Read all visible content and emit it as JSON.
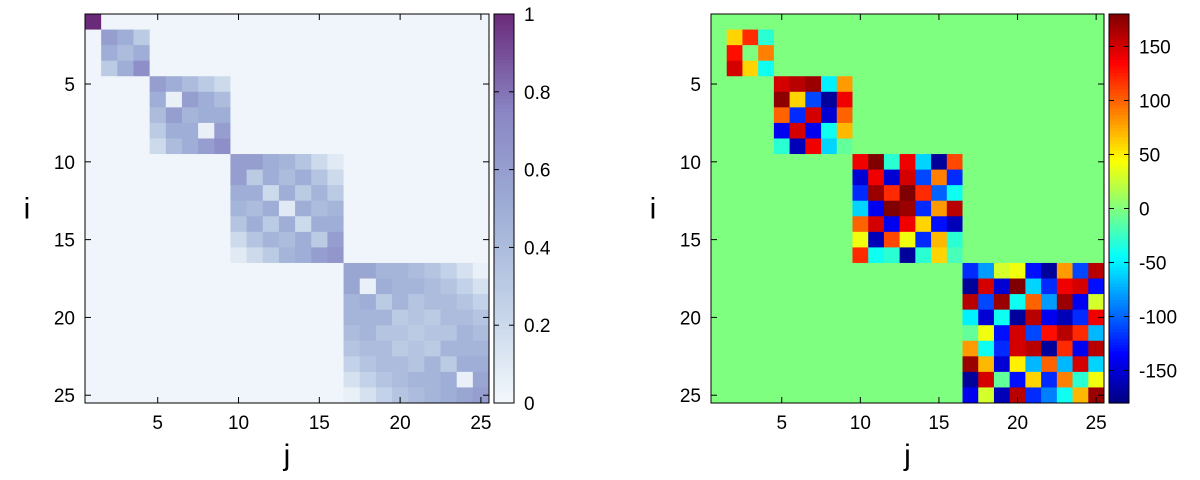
{
  "chart_data": [
    {
      "type": "heatmap",
      "title": "",
      "xlabel": "j",
      "ylabel": "i",
      "x_range": [
        1,
        25
      ],
      "y_range": [
        1,
        25
      ],
      "y_inverted": true,
      "x_ticks": [
        5,
        10,
        15,
        20,
        25
      ],
      "y_ticks": [
        5,
        10,
        15,
        20,
        25
      ],
      "colorbar": {
        "min": 0,
        "max": 1,
        "ticks": [
          "0",
          "0.2",
          "0.4",
          "0.6",
          "0.8",
          "1"
        ],
        "tick_values": [
          0,
          0.2,
          0.4,
          0.6,
          0.8,
          1
        ],
        "colormap": [
          "#f3f8fc",
          "#c3d2e8",
          "#9eaed6",
          "#8a86c4",
          "#6a2a7a"
        ]
      },
      "blocks": [
        {
          "rows": [
            1,
            1
          ],
          "values": [
            [
              1.0
            ]
          ]
        },
        {
          "rows": [
            2,
            4
          ],
          "values": [
            [
              0.6,
              0.5,
              0.3
            ],
            [
              0.5,
              0.4,
              0.5
            ],
            [
              0.3,
              0.5,
              0.7
            ]
          ]
        },
        {
          "rows": [
            5,
            9
          ],
          "values": [
            [
              0.6,
              0.5,
              0.4,
              0.3,
              0.2
            ],
            [
              0.5,
              0.05,
              0.6,
              0.5,
              0.4
            ],
            [
              0.4,
              0.6,
              0.45,
              0.5,
              0.5
            ],
            [
              0.3,
              0.5,
              0.5,
              0.05,
              0.6
            ],
            [
              0.2,
              0.4,
              0.5,
              0.6,
              0.7
            ]
          ]
        },
        {
          "rows": [
            10,
            16
          ],
          "values": [
            [
              0.6,
              0.6,
              0.5,
              0.45,
              0.35,
              0.2,
              0.1
            ],
            [
              0.6,
              0.3,
              0.5,
              0.4,
              0.5,
              0.35,
              0.2
            ],
            [
              0.5,
              0.5,
              0.2,
              0.5,
              0.3,
              0.45,
              0.3
            ],
            [
              0.45,
              0.4,
              0.5,
              0.1,
              0.5,
              0.4,
              0.45
            ],
            [
              0.35,
              0.5,
              0.3,
              0.5,
              0.2,
              0.5,
              0.5
            ],
            [
              0.2,
              0.35,
              0.45,
              0.4,
              0.5,
              0.3,
              0.6
            ],
            [
              0.1,
              0.2,
              0.3,
              0.45,
              0.5,
              0.6,
              0.65
            ]
          ]
        },
        {
          "rows": [
            17,
            25
          ],
          "values": [
            [
              0.55,
              0.55,
              0.45,
              0.45,
              0.4,
              0.35,
              0.25,
              0.15,
              0.05
            ],
            [
              0.55,
              0.05,
              0.5,
              0.45,
              0.45,
              0.4,
              0.35,
              0.25,
              0.15
            ],
            [
              0.45,
              0.5,
              0.3,
              0.45,
              0.35,
              0.4,
              0.4,
              0.35,
              0.25
            ],
            [
              0.45,
              0.45,
              0.45,
              0.3,
              0.35,
              0.3,
              0.4,
              0.4,
              0.35
            ],
            [
              0.4,
              0.45,
              0.35,
              0.35,
              0.3,
              0.35,
              0.35,
              0.45,
              0.4
            ],
            [
              0.35,
              0.4,
              0.4,
              0.3,
              0.35,
              0.3,
              0.45,
              0.45,
              0.45
            ],
            [
              0.25,
              0.35,
              0.4,
              0.4,
              0.35,
              0.45,
              0.3,
              0.5,
              0.5
            ],
            [
              0.15,
              0.25,
              0.35,
              0.4,
              0.45,
              0.45,
              0.5,
              0.05,
              0.55
            ],
            [
              0.05,
              0.15,
              0.25,
              0.35,
              0.4,
              0.45,
              0.5,
              0.55,
              0.6
            ]
          ]
        }
      ],
      "background_value": 0.02
    },
    {
      "type": "heatmap",
      "title": "",
      "xlabel": "j",
      "ylabel": "i",
      "x_range": [
        1,
        25
      ],
      "y_range": [
        1,
        25
      ],
      "y_inverted": true,
      "x_ticks": [
        5,
        10,
        15,
        20,
        25
      ],
      "y_ticks": [
        5,
        10,
        15,
        20,
        25
      ],
      "colorbar": {
        "min": -180,
        "max": 180,
        "ticks": [
          "-150",
          "-100",
          "-50",
          "0",
          "50",
          "100",
          "150"
        ],
        "tick_values": [
          -150,
          -100,
          -50,
          0,
          50,
          100,
          150
        ],
        "colormap": [
          "#00007f",
          "#0000ff",
          "#007fff",
          "#00ffff",
          "#7fff7f",
          "#ffff00",
          "#ff7f00",
          "#ff0000",
          "#7f0000"
        ]
      },
      "blocks": [
        {
          "rows": [
            2,
            4
          ],
          "cols": [
            2,
            4
          ],
          "values": [
            [
              60,
              120,
              -30
            ],
            [
              130,
              0,
              90
            ],
            [
              150,
              60,
              -40
            ]
          ]
        },
        {
          "rows": [
            5,
            9
          ],
          "cols": [
            5,
            9
          ],
          "values": [
            [
              150,
              160,
              170,
              -50,
              80
            ],
            [
              175,
              60,
              -110,
              -170,
              140
            ],
            [
              100,
              -120,
              150,
              -150,
              100
            ],
            [
              -140,
              150,
              -140,
              -40,
              70
            ],
            [
              -30,
              -160,
              140,
              -60,
              -10
            ]
          ]
        },
        {
          "rows": [
            10,
            16
          ],
          "cols": [
            10,
            16
          ],
          "values": [
            [
              140,
              180,
              -30,
              140,
              -60,
              -170,
              110
            ],
            [
              -150,
              140,
              -150,
              150,
              -110,
              90,
              -120
            ],
            [
              -120,
              170,
              120,
              180,
              120,
              -100,
              -40
            ],
            [
              -60,
              -140,
              180,
              170,
              -120,
              80,
              160
            ],
            [
              100,
              150,
              -140,
              140,
              60,
              -130,
              -160
            ],
            [
              40,
              -160,
              110,
              40,
              -120,
              70,
              -30
            ],
            [
              120,
              -40,
              -30,
              -170,
              -30,
              60,
              -20
            ]
          ]
        },
        {
          "rows": [
            17,
            25
          ],
          "cols": [
            17,
            25
          ],
          "values": [
            [
              -120,
              -80,
              30,
              40,
              -130,
              -170,
              80,
              -110,
              160
            ],
            [
              -170,
              150,
              -150,
              180,
              -60,
              -120,
              140,
              150,
              -130
            ],
            [
              160,
              -110,
              170,
              -40,
              100,
              -80,
              170,
              -140,
              30
            ],
            [
              -50,
              -150,
              -40,
              -170,
              160,
              -140,
              -160,
              -120,
              140
            ],
            [
              -10,
              40,
              -130,
              150,
              -110,
              130,
              160,
              120,
              -70
            ],
            [
              80,
              -40,
              -120,
              150,
              160,
              -170,
              120,
              -140,
              160
            ],
            [
              170,
              70,
              -150,
              50,
              -70,
              100,
              -70,
              150,
              -60
            ],
            [
              -170,
              150,
              -10,
              -130,
              60,
              -120,
              90,
              -30,
              40
            ],
            [
              -140,
              30,
              -160,
              160,
              -120,
              -90,
              -40,
              70,
              170
            ]
          ]
        }
      ],
      "background_value": 0
    }
  ]
}
